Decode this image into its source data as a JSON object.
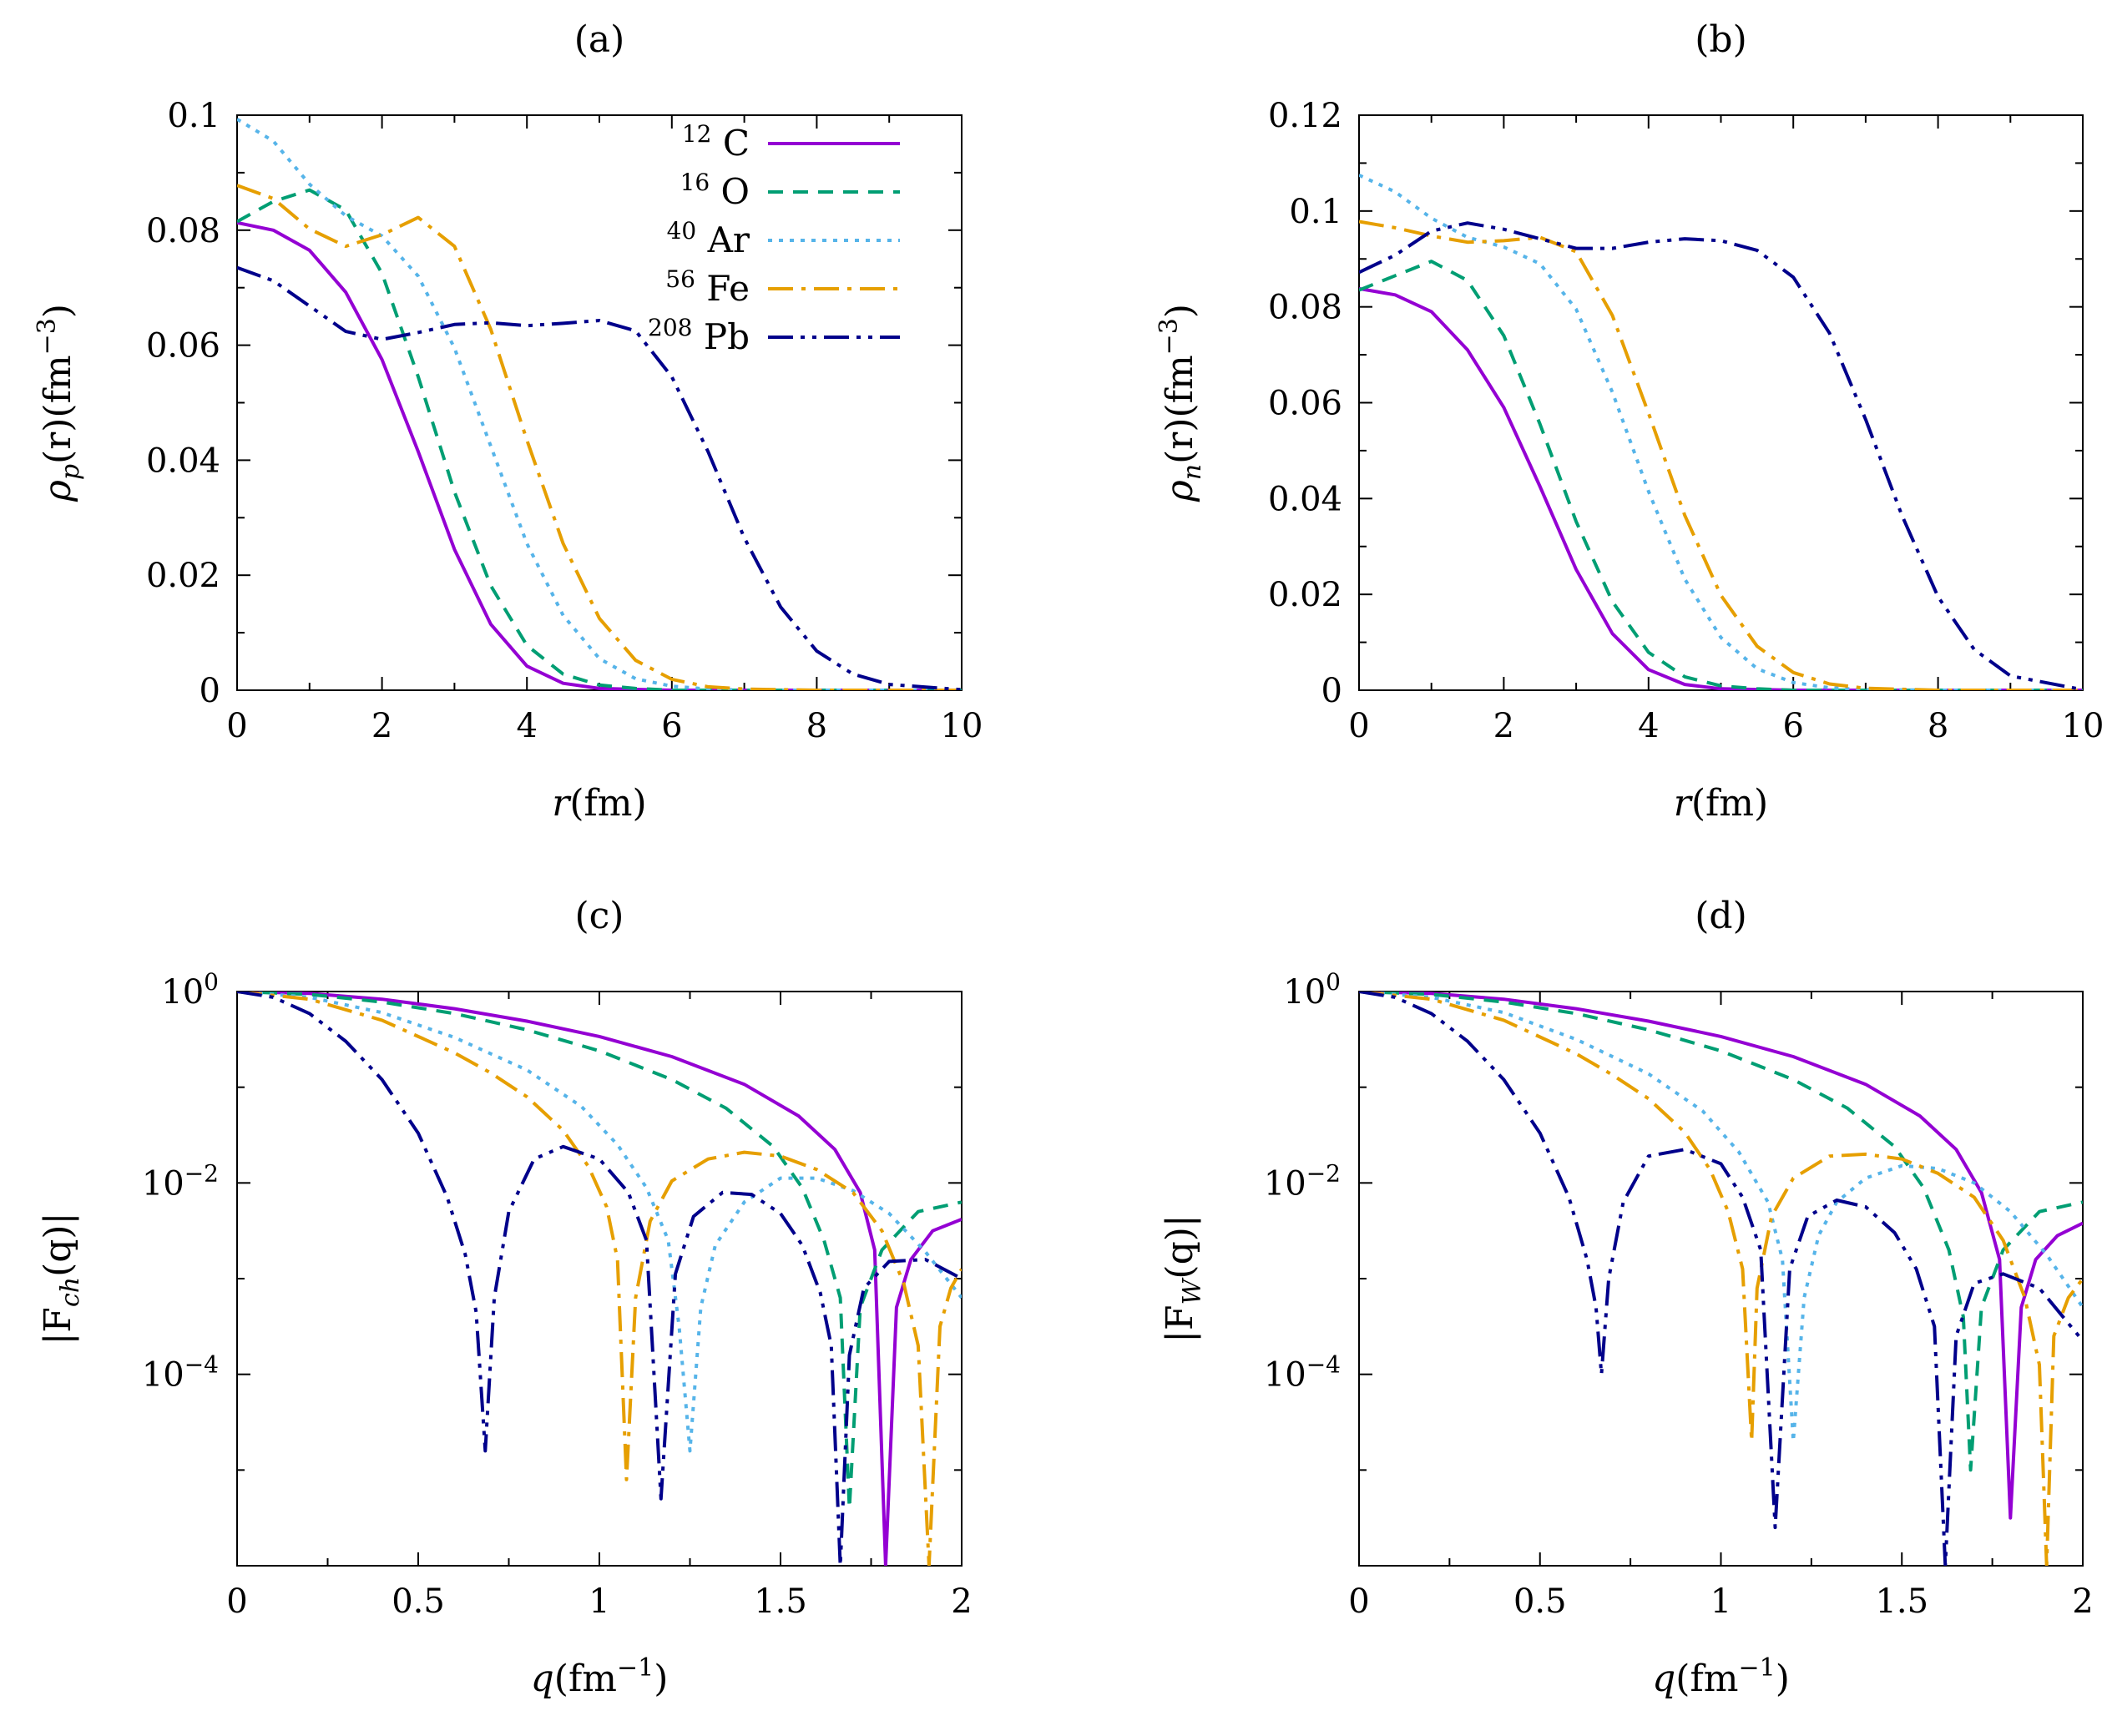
{
  "colors": {
    "C": "#9400d3",
    "O": "#009e73",
    "Ar": "#56b4e9",
    "Fe": "#e69f00",
    "Pb": "#00008b"
  },
  "legend": [
    {
      "key": "C",
      "mass": "12",
      "element": "C",
      "dash": ""
    },
    {
      "key": "O",
      "mass": "16",
      "element": "O",
      "dash": "18,12"
    },
    {
      "key": "Ar",
      "mass": "40",
      "element": "Ar",
      "dash": "5,8"
    },
    {
      "key": "Fe",
      "mass": "56",
      "element": "Fe",
      "dash": "30,10,5,10"
    },
    {
      "key": "Pb",
      "mass": "208",
      "element": "Pb",
      "dash": "30,9,5,9,5,9"
    }
  ],
  "chart_data": [
    {
      "id": "a",
      "title": "(a)",
      "type": "line",
      "xlabel_main": "r",
      "xlabel_unit": "(fm)",
      "ylabel_main": "ρ",
      "ylabel_sub": "p",
      "ylabel_tail": "(r)(fm",
      "ylabel_exp": "−3",
      "ylabel_close": ")",
      "xlim": [
        0,
        10
      ],
      "ylim": [
        0,
        0.1
      ],
      "yscale": "linear",
      "xticks": [
        "0",
        "2",
        "4",
        "6",
        "8",
        "10"
      ],
      "yticks": [
        "0",
        "0.02",
        "0.04",
        "0.06",
        "0.08",
        "0.1"
      ],
      "legend_position": "top-right",
      "series": [
        {
          "key": "C",
          "name": "12 C",
          "x": [
            0,
            0.5,
            1,
            1.5,
            2,
            2.5,
            3,
            3.5,
            4,
            4.5,
            5,
            6,
            7,
            8,
            10
          ],
          "y": [
            0.0813,
            0.08,
            0.0765,
            0.0692,
            0.0575,
            0.0415,
            0.0245,
            0.0115,
            0.0042,
            0.0012,
            0.0003,
            0,
            0,
            0,
            0
          ]
        },
        {
          "key": "O",
          "name": "16 O",
          "x": [
            0,
            0.5,
            1,
            1.5,
            2,
            2.5,
            3,
            3.5,
            4,
            4.5,
            5,
            5.5,
            6,
            7,
            8,
            10
          ],
          "y": [
            0.0815,
            0.085,
            0.087,
            0.0835,
            0.0725,
            0.0545,
            0.0345,
            0.0182,
            0.0078,
            0.0028,
            0.0009,
            0.0003,
            0,
            0,
            0,
            0
          ]
        },
        {
          "key": "Ar",
          "name": "40 Ar",
          "x": [
            0,
            0.5,
            1,
            1.5,
            2,
            2.5,
            3,
            3.5,
            4,
            4.5,
            5,
            5.5,
            6,
            6.5,
            7,
            8,
            10
          ],
          "y": [
            0.0993,
            0.0955,
            0.088,
            0.0825,
            0.079,
            0.072,
            0.0595,
            0.0425,
            0.0255,
            0.013,
            0.0055,
            0.002,
            0.0007,
            0.0002,
            0,
            0,
            0
          ]
        },
        {
          "key": "Fe",
          "name": "56 Fe",
          "x": [
            0,
            0.5,
            1,
            1.5,
            2,
            2.5,
            3,
            3.5,
            4,
            4.5,
            5,
            5.5,
            6,
            6.5,
            7,
            8,
            10
          ],
          "y": [
            0.0878,
            0.0855,
            0.0802,
            0.0772,
            0.0792,
            0.0822,
            0.0772,
            0.0628,
            0.0435,
            0.0255,
            0.0125,
            0.0052,
            0.0019,
            0.0006,
            0.0002,
            0,
            0
          ]
        },
        {
          "key": "Pb",
          "name": "208 Pb",
          "x": [
            0,
            0.5,
            1,
            1.5,
            2,
            2.5,
            3,
            3.5,
            4,
            4.5,
            5,
            5.5,
            6,
            6.5,
            7,
            7.5,
            8,
            8.5,
            9,
            10
          ],
          "y": [
            0.0735,
            0.0712,
            0.0668,
            0.0624,
            0.061,
            0.0622,
            0.0636,
            0.0639,
            0.0634,
            0.0638,
            0.0643,
            0.0625,
            0.0545,
            0.0415,
            0.0265,
            0.0145,
            0.0068,
            0.0028,
            0.001,
            0.0001
          ]
        }
      ]
    },
    {
      "id": "b",
      "title": "(b)",
      "type": "line",
      "xlabel_main": "r",
      "xlabel_unit": "(fm)",
      "ylabel_main": "ρ",
      "ylabel_sub": "n",
      "ylabel_tail": "(r)(fm",
      "ylabel_exp": "−3",
      "ylabel_close": ")",
      "xlim": [
        0,
        10
      ],
      "ylim": [
        0,
        0.12
      ],
      "yscale": "linear",
      "xticks": [
        "0",
        "2",
        "4",
        "6",
        "8",
        "10"
      ],
      "yticks": [
        "0",
        "0.02",
        "0.04",
        "0.06",
        "0.08",
        "0.1",
        "0.12"
      ],
      "series": [
        {
          "key": "C",
          "name": "12 C",
          "x": [
            0,
            0.5,
            1,
            1.5,
            2,
            2.5,
            3,
            3.5,
            4,
            4.5,
            5,
            6,
            8,
            10
          ],
          "y": [
            0.0838,
            0.0825,
            0.079,
            0.071,
            0.059,
            0.0425,
            0.0252,
            0.0118,
            0.0043,
            0.0012,
            0.0003,
            0,
            0,
            0
          ]
        },
        {
          "key": "O",
          "name": "16 O",
          "x": [
            0,
            0.5,
            1,
            1.5,
            2,
            2.5,
            3,
            3.5,
            4,
            4.5,
            5,
            5.5,
            6,
            8,
            10
          ],
          "y": [
            0.0835,
            0.0865,
            0.0895,
            0.0855,
            0.074,
            0.0555,
            0.0352,
            0.0185,
            0.0079,
            0.0028,
            0.0009,
            0.0003,
            0,
            0,
            0
          ]
        },
        {
          "key": "Ar",
          "name": "40 Ar",
          "x": [
            0,
            0.5,
            1,
            1.5,
            2,
            2.5,
            3,
            3.5,
            4,
            4.5,
            5,
            5.5,
            6,
            6.5,
            7,
            8,
            10
          ],
          "y": [
            0.1075,
            0.104,
            0.0985,
            0.0945,
            0.0925,
            0.089,
            0.0795,
            0.0622,
            0.0415,
            0.0232,
            0.011,
            0.0045,
            0.0016,
            0.0005,
            0.0001,
            0,
            0
          ]
        },
        {
          "key": "Fe",
          "name": "56 Fe",
          "x": [
            0,
            0.5,
            1,
            1.5,
            2,
            2.5,
            3,
            3.5,
            4,
            4.5,
            5,
            5.5,
            6,
            6.5,
            7,
            8,
            10
          ],
          "y": [
            0.0978,
            0.0965,
            0.0948,
            0.0935,
            0.0938,
            0.0945,
            0.0915,
            0.0782,
            0.0578,
            0.0365,
            0.0198,
            0.0092,
            0.0037,
            0.0013,
            0.0004,
            0,
            0
          ]
        },
        {
          "key": "Pb",
          "name": "208 Pb",
          "x": [
            0,
            0.5,
            1,
            1.5,
            2,
            2.5,
            3,
            3.5,
            4,
            4.5,
            5,
            5.5,
            6,
            6.5,
            7,
            7.5,
            8,
            8.5,
            9,
            10
          ],
          "y": [
            0.0872,
            0.0908,
            0.0958,
            0.0975,
            0.0962,
            0.0942,
            0.0922,
            0.0922,
            0.0935,
            0.0942,
            0.0938,
            0.0918,
            0.0862,
            0.0745,
            0.0565,
            0.0365,
            0.0195,
            0.0085,
            0.003,
            0.0001
          ]
        }
      ]
    },
    {
      "id": "c",
      "title": "(c)",
      "type": "line",
      "xlabel_main": "q",
      "xlabel_unit": "(fm",
      "xlabel_exp": "−1",
      "xlabel_close": ")",
      "ylabel_main": "|F",
      "ylabel_sub": "ch",
      "ylabel_tail": "(q)|",
      "xlim": [
        0,
        2
      ],
      "ylim_log10": [
        -6,
        0
      ],
      "yscale": "log",
      "xticks": [
        "0",
        "0.5",
        "1",
        "1.5",
        "2"
      ],
      "ytick_positions_log10": [
        0,
        -2,
        -4
      ],
      "ytick_exponents": [
        "0",
        "−2",
        "−4"
      ],
      "ytick_base": "10",
      "series": [
        {
          "key": "C",
          "name": "12 C",
          "x": [
            0,
            0.2,
            0.4,
            0.6,
            0.8,
            1.0,
            1.2,
            1.4,
            1.55,
            1.65,
            1.72,
            1.76,
            1.79,
            1.82,
            1.86,
            1.92,
            2.0
          ],
          "logy": [
            0,
            -0.02,
            -0.08,
            -0.18,
            -0.31,
            -0.47,
            -0.68,
            -0.97,
            -1.3,
            -1.65,
            -2.1,
            -2.7,
            -6.0,
            -3.3,
            -2.8,
            -2.5,
            -2.38
          ]
        },
        {
          "key": "O",
          "name": "16 O",
          "x": [
            0,
            0.2,
            0.4,
            0.6,
            0.8,
            1.0,
            1.2,
            1.35,
            1.48,
            1.56,
            1.62,
            1.665,
            1.69,
            1.72,
            1.78,
            1.88,
            2.0
          ],
          "logy": [
            0,
            -0.03,
            -0.11,
            -0.23,
            -0.4,
            -0.62,
            -0.92,
            -1.22,
            -1.62,
            -2.05,
            -2.6,
            -3.2,
            -5.4,
            -3.3,
            -2.7,
            -2.3,
            -2.2
          ]
        },
        {
          "key": "Ar",
          "name": "40 Ar",
          "x": [
            0,
            0.2,
            0.4,
            0.6,
            0.8,
            0.95,
            1.05,
            1.13,
            1.19,
            1.22,
            1.25,
            1.28,
            1.32,
            1.4,
            1.5,
            1.6,
            1.7,
            1.8,
            1.9,
            2.0
          ],
          "logy": [
            0,
            -0.06,
            -0.22,
            -0.48,
            -0.82,
            -1.2,
            -1.6,
            -2.05,
            -2.6,
            -3.5,
            -4.8,
            -3.3,
            -2.65,
            -2.2,
            -1.95,
            -1.95,
            -2.08,
            -2.32,
            -2.72,
            -3.2
          ]
        },
        {
          "key": "Fe",
          "name": "56 Fe",
          "x": [
            0,
            0.2,
            0.4,
            0.6,
            0.7,
            0.8,
            0.9,
            0.97,
            1.02,
            1.05,
            1.075,
            1.1,
            1.14,
            1.2,
            1.3,
            1.4,
            1.5,
            1.6,
            1.7,
            1.78,
            1.84,
            1.88,
            1.91,
            1.94,
            1.97,
            2.0
          ],
          "logy": [
            0,
            -0.08,
            -0.3,
            -0.64,
            -0.85,
            -1.1,
            -1.45,
            -1.83,
            -2.25,
            -2.8,
            -5.1,
            -3.2,
            -2.4,
            -1.98,
            -1.75,
            -1.68,
            -1.72,
            -1.86,
            -2.1,
            -2.5,
            -3.05,
            -3.7,
            -6.0,
            -3.5,
            -3.1,
            -2.9
          ]
        },
        {
          "key": "Pb",
          "name": "208 Pb",
          "x": [
            0,
            0.1,
            0.2,
            0.3,
            0.4,
            0.5,
            0.58,
            0.63,
            0.66,
            0.685,
            0.71,
            0.75,
            0.82,
            0.9,
            1.0,
            1.08,
            1.13,
            1.17,
            1.21,
            1.26,
            1.34,
            1.42,
            1.5,
            1.56,
            1.61,
            1.64,
            1.665,
            1.69,
            1.73,
            1.8,
            1.9,
            2.0
          ],
          "logy": [
            0,
            -0.06,
            -0.23,
            -0.52,
            -0.92,
            -1.48,
            -2.15,
            -2.75,
            -3.35,
            -4.8,
            -3.2,
            -2.3,
            -1.75,
            -1.62,
            -1.75,
            -2.1,
            -2.6,
            -5.3,
            -2.95,
            -2.35,
            -2.1,
            -2.12,
            -2.32,
            -2.65,
            -3.15,
            -3.7,
            -6.0,
            -3.8,
            -3.1,
            -2.82,
            -2.8,
            -3.0
          ]
        }
      ]
    },
    {
      "id": "d",
      "title": "(d)",
      "type": "line",
      "xlabel_main": "q",
      "xlabel_unit": "(fm",
      "xlabel_exp": "−1",
      "xlabel_close": ")",
      "ylabel_main": "|F",
      "ylabel_sub": "W",
      "ylabel_tail": "(q)|",
      "xlim": [
        0,
        2
      ],
      "ylim_log10": [
        -6,
        0
      ],
      "yscale": "log",
      "xticks": [
        "0",
        "0.5",
        "1",
        "1.5",
        "2"
      ],
      "ytick_positions_log10": [
        0,
        -2,
        -4
      ],
      "ytick_exponents": [
        "0",
        "−2",
        "−4"
      ],
      "ytick_base": "10",
      "series": [
        {
          "key": "C",
          "name": "12 C",
          "x": [
            0,
            0.2,
            0.4,
            0.6,
            0.8,
            1.0,
            1.2,
            1.4,
            1.55,
            1.65,
            1.72,
            1.77,
            1.8,
            1.83,
            1.87,
            1.93,
            2.0
          ],
          "logy": [
            0,
            -0.02,
            -0.08,
            -0.18,
            -0.31,
            -0.47,
            -0.68,
            -0.97,
            -1.3,
            -1.65,
            -2.1,
            -2.8,
            -5.5,
            -3.3,
            -2.8,
            -2.55,
            -2.42
          ]
        },
        {
          "key": "O",
          "name": "16 O",
          "x": [
            0,
            0.2,
            0.4,
            0.6,
            0.8,
            1.0,
            1.2,
            1.35,
            1.48,
            1.56,
            1.63,
            1.67,
            1.69,
            1.72,
            1.78,
            1.88,
            2.0
          ],
          "logy": [
            0,
            -0.03,
            -0.11,
            -0.23,
            -0.4,
            -0.62,
            -0.92,
            -1.22,
            -1.62,
            -2.05,
            -2.7,
            -3.4,
            -5.0,
            -3.3,
            -2.7,
            -2.3,
            -2.2
          ]
        },
        {
          "key": "Ar",
          "name": "40 Ar",
          "x": [
            0,
            0.2,
            0.4,
            0.6,
            0.8,
            0.95,
            1.05,
            1.13,
            1.17,
            1.2,
            1.23,
            1.27,
            1.32,
            1.4,
            1.5,
            1.6,
            1.7,
            1.8,
            1.9,
            2.0
          ],
          "logy": [
            0,
            -0.06,
            -0.22,
            -0.5,
            -0.86,
            -1.25,
            -1.68,
            -2.2,
            -2.8,
            -4.7,
            -3.2,
            -2.55,
            -2.2,
            -1.95,
            -1.82,
            -1.85,
            -2.0,
            -2.3,
            -2.75,
            -3.3
          ]
        },
        {
          "key": "Fe",
          "name": "56 Fe",
          "x": [
            0,
            0.2,
            0.4,
            0.6,
            0.7,
            0.8,
            0.9,
            0.97,
            1.02,
            1.06,
            1.085,
            1.1,
            1.14,
            1.2,
            1.3,
            1.4,
            1.5,
            1.6,
            1.7,
            1.78,
            1.84,
            1.88,
            1.9,
            1.92,
            1.96,
            2.0
          ],
          "logy": [
            0,
            -0.08,
            -0.3,
            -0.65,
            -0.87,
            -1.12,
            -1.47,
            -1.86,
            -2.3,
            -2.9,
            -4.7,
            -3.1,
            -2.35,
            -1.95,
            -1.72,
            -1.7,
            -1.75,
            -1.9,
            -2.15,
            -2.6,
            -3.2,
            -3.9,
            -6.0,
            -3.6,
            -3.2,
            -3.0
          ]
        },
        {
          "key": "Pb",
          "name": "208 Pb",
          "x": [
            0,
            0.1,
            0.2,
            0.3,
            0.4,
            0.5,
            0.58,
            0.63,
            0.655,
            0.67,
            0.69,
            0.73,
            0.8,
            0.9,
            1.0,
            1.06,
            1.11,
            1.15,
            1.19,
            1.24,
            1.32,
            1.4,
            1.48,
            1.54,
            1.59,
            1.62,
            1.65,
            1.7,
            1.78,
            1.88,
            2.0
          ],
          "logy": [
            0,
            -0.06,
            -0.23,
            -0.52,
            -0.92,
            -1.48,
            -2.15,
            -2.8,
            -3.3,
            -4.0,
            -3.0,
            -2.2,
            -1.72,
            -1.65,
            -1.8,
            -2.15,
            -2.7,
            -5.6,
            -2.9,
            -2.35,
            -2.18,
            -2.25,
            -2.52,
            -2.9,
            -3.5,
            -6.0,
            -3.6,
            -3.05,
            -2.95,
            -3.1,
            -3.65
          ]
        }
      ]
    }
  ]
}
